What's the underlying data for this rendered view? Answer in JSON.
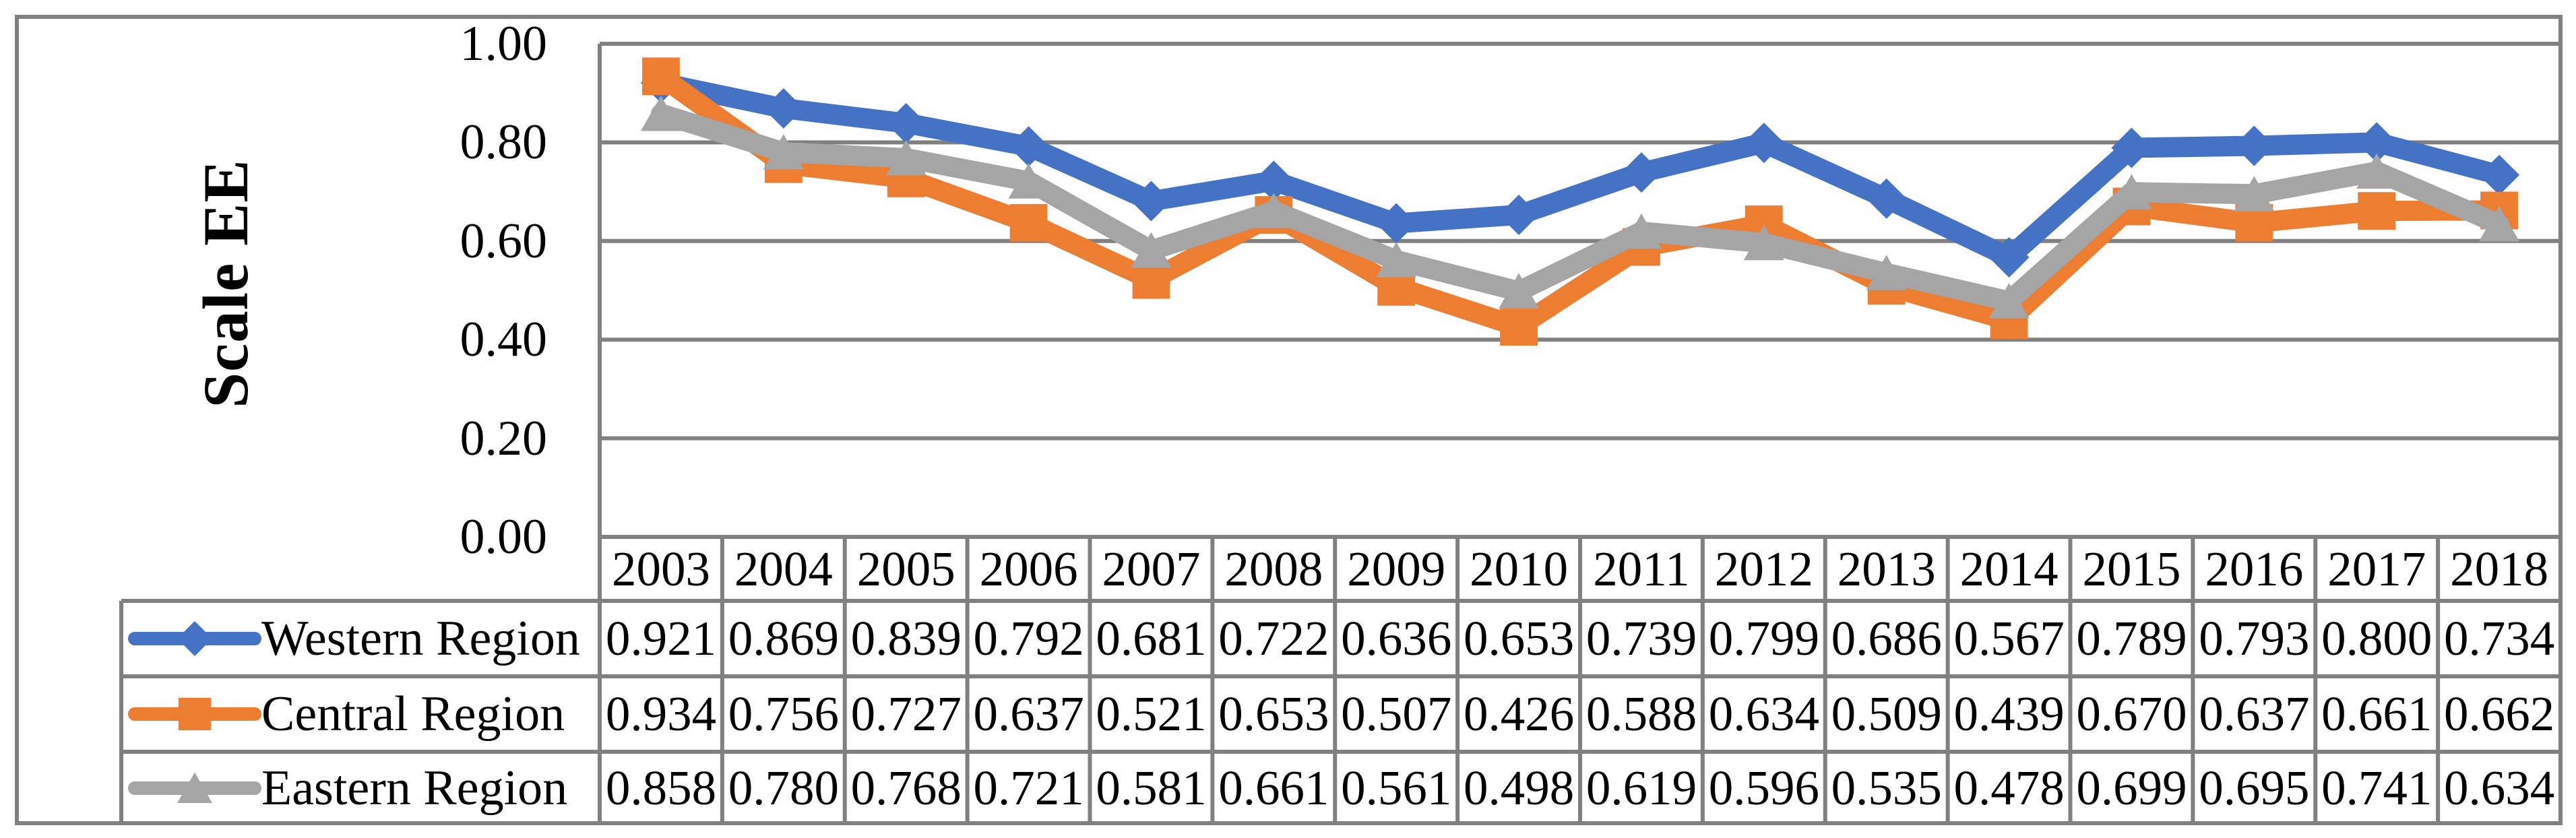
{
  "figure": {
    "background": "#FFFFFF",
    "border_color": "#808080",
    "text_color": "#000000"
  },
  "chart_data": {
    "type": "line",
    "x": [
      2003,
      2004,
      2005,
      2006,
      2007,
      2008,
      2009,
      2010,
      2011,
      2012,
      2013,
      2014,
      2015,
      2016,
      2017,
      2018
    ],
    "series": [
      {
        "name": "Western Region",
        "marker": "diamond",
        "color": "#4472C4",
        "values": [
          0.921,
          0.869,
          0.839,
          0.792,
          0.681,
          0.722,
          0.636,
          0.653,
          0.739,
          0.799,
          0.686,
          0.567,
          0.789,
          0.793,
          0.8,
          0.734
        ]
      },
      {
        "name": "Central Region",
        "marker": "square",
        "color": "#ED7D31",
        "values": [
          0.934,
          0.756,
          0.727,
          0.637,
          0.521,
          0.653,
          0.507,
          0.426,
          0.588,
          0.634,
          0.509,
          0.439,
          0.67,
          0.637,
          0.661,
          0.662
        ]
      },
      {
        "name": "Eastern Region",
        "marker": "triangle",
        "color": "#A5A5A5",
        "values": [
          0.858,
          0.78,
          0.768,
          0.721,
          0.581,
          0.661,
          0.561,
          0.498,
          0.619,
          0.596,
          0.535,
          0.478,
          0.699,
          0.695,
          0.741,
          0.634
        ]
      }
    ],
    "ylabel": "Scale EE",
    "xlabel": "",
    "ylim": [
      0,
      1
    ],
    "ytick_labels": [
      "1.00",
      "0.80",
      "0.60",
      "0.40",
      "0.20",
      "0.00"
    ],
    "grid": true,
    "grid_color": "#808080",
    "legend_position": "table-left",
    "value_format_decimals": 3
  }
}
